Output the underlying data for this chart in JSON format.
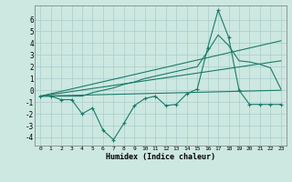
{
  "xlabel": "Humidex (Indice chaleur)",
  "xlim": [
    -0.5,
    23.5
  ],
  "ylim": [
    -4.7,
    7.2
  ],
  "yticks": [
    -4,
    -3,
    -2,
    -1,
    0,
    1,
    2,
    3,
    4,
    5,
    6
  ],
  "xticks": [
    0,
    1,
    2,
    3,
    4,
    5,
    6,
    7,
    8,
    9,
    10,
    11,
    12,
    13,
    14,
    15,
    16,
    17,
    18,
    19,
    20,
    21,
    22,
    23
  ],
  "background_color": "#cce8e0",
  "grid_color": "#aacccc",
  "line_color": "#1a7a6a",
  "series": {
    "jagged": {
      "x": [
        0,
        1,
        2,
        3,
        4,
        5,
        6,
        7,
        8,
        9,
        10,
        11,
        12,
        13,
        14,
        15,
        16,
        17,
        18,
        19,
        20,
        21,
        22,
        23
      ],
      "y": [
        -0.5,
        -0.5,
        -0.8,
        -0.8,
        -2.0,
        -1.5,
        -3.4,
        -4.2,
        -2.8,
        -1.3,
        -0.7,
        -0.5,
        -1.3,
        -1.2,
        -0.3,
        0.1,
        3.6,
        6.8,
        4.5,
        0.0,
        -1.2,
        -1.2,
        -1.2,
        -1.2
      ]
    },
    "straight_low": {
      "x": [
        0,
        23
      ],
      "y": [
        -0.5,
        0.0
      ]
    },
    "straight_mid": {
      "x": [
        0,
        23
      ],
      "y": [
        -0.5,
        2.5
      ]
    },
    "straight_high": {
      "x": [
        0,
        23
      ],
      "y": [
        -0.5,
        4.2
      ]
    },
    "smooth": {
      "x": [
        0,
        1,
        2,
        3,
        4,
        5,
        6,
        7,
        8,
        9,
        10,
        11,
        12,
        13,
        14,
        15,
        16,
        17,
        18,
        19,
        20,
        21,
        22,
        23
      ],
      "y": [
        -0.5,
        -0.5,
        -0.5,
        -0.5,
        -0.5,
        -0.2,
        0.0,
        0.2,
        0.5,
        0.7,
        1.0,
        1.2,
        1.4,
        1.6,
        1.8,
        2.0,
        3.3,
        4.7,
        3.8,
        2.5,
        2.4,
        2.2,
        1.9,
        0.1
      ]
    }
  }
}
